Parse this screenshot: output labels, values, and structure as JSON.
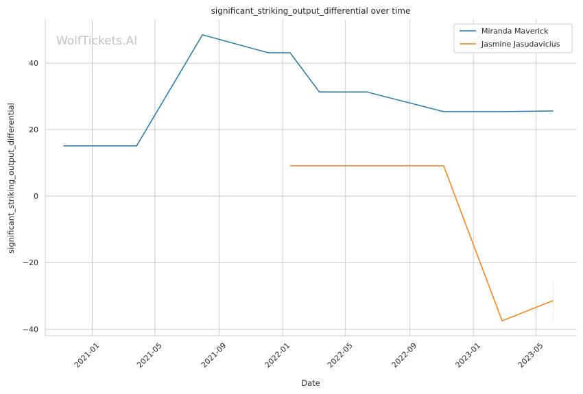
{
  "chart_data": {
    "type": "line",
    "title": "significant_striking_output_differential over time",
    "xlabel": "Date",
    "ylabel": "significant_striking_output_differential",
    "watermark": "WolfTickets.AI",
    "x_ticks": [
      "2021-01",
      "2021-05",
      "2021-09",
      "2022-01",
      "2022-05",
      "2022-09",
      "2023-01",
      "2023-05"
    ],
    "y_ticks": [
      -40,
      -20,
      0,
      20,
      40
    ],
    "y_tick_labels": [
      "−40",
      "−20",
      "0",
      "20",
      "40"
    ],
    "xlim": [
      "2020-10-03",
      "2023-07-18"
    ],
    "ylim": [
      -42,
      53
    ],
    "grid": true,
    "legend_position": "top-right",
    "series": [
      {
        "name": "Miranda Maverick",
        "color": "#1f77b4",
        "points": [
          {
            "x": "2020-11-07",
            "y": 15.1
          },
          {
            "x": "2021-03-27",
            "y": 15.1
          },
          {
            "x": "2021-07-31",
            "y": 48.5
          },
          {
            "x": "2021-12-04",
            "y": 43.1
          },
          {
            "x": "2022-01-15",
            "y": 43.1
          },
          {
            "x": "2022-03-12",
            "y": 31.3
          },
          {
            "x": "2022-06-11",
            "y": 31.3
          },
          {
            "x": "2022-11-05",
            "y": 25.4
          },
          {
            "x": "2023-02-25",
            "y": 25.4
          },
          {
            "x": "2023-06-03",
            "y": 25.6
          }
        ]
      },
      {
        "name": "Jasmine Jasudavicius",
        "color": "#ff7f0e",
        "points": [
          {
            "x": "2022-01-15",
            "y": 9.1
          },
          {
            "x": "2022-11-05",
            "y": 9.1
          },
          {
            "x": "2023-02-25",
            "y": -37.5
          },
          {
            "x": "2023-06-03",
            "y": -31.4
          }
        ]
      }
    ]
  }
}
